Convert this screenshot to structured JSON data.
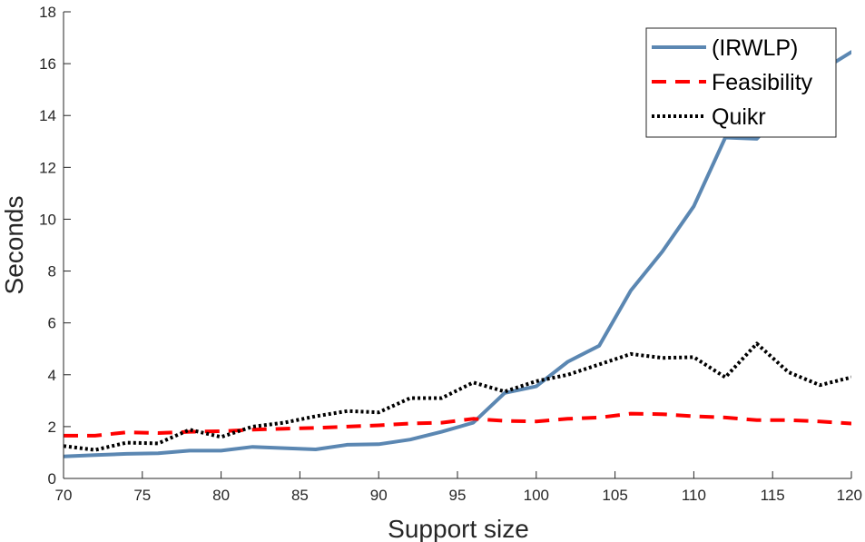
{
  "chart_data": {
    "type": "line",
    "xlabel": "Support size",
    "ylabel": "Seconds",
    "xlim": [
      70,
      120
    ],
    "ylim": [
      0,
      18
    ],
    "xticks": [
      70,
      75,
      80,
      85,
      90,
      95,
      100,
      105,
      110,
      115,
      120
    ],
    "yticks": [
      0,
      2,
      4,
      6,
      8,
      10,
      12,
      14,
      16,
      18
    ],
    "grid": false,
    "legend_position": "top-right",
    "x": [
      70,
      72,
      74,
      76,
      78,
      80,
      82,
      84,
      86,
      88,
      90,
      92,
      94,
      96,
      98,
      100,
      102,
      104,
      106,
      108,
      110,
      112,
      114,
      116,
      118,
      120
    ],
    "series": [
      {
        "name": "(IRWLP)",
        "color": "#5b87b2",
        "style": "solid",
        "values": [
          0.85,
          0.9,
          0.95,
          0.97,
          1.07,
          1.07,
          1.22,
          1.17,
          1.12,
          1.3,
          1.32,
          1.5,
          1.8,
          2.15,
          3.3,
          3.55,
          4.5,
          5.12,
          7.25,
          8.75,
          10.5,
          13.15,
          13.1,
          14.4,
          15.7,
          16.45
        ]
      },
      {
        "name": "Feasibility",
        "color": "#ff0000",
        "style": "dashed",
        "values": [
          1.65,
          1.65,
          1.78,
          1.75,
          1.8,
          1.82,
          1.88,
          1.92,
          1.95,
          2.0,
          2.05,
          2.12,
          2.15,
          2.3,
          2.22,
          2.2,
          2.3,
          2.35,
          2.5,
          2.48,
          2.4,
          2.35,
          2.25,
          2.25,
          2.2,
          2.12
        ]
      },
      {
        "name": "Quikr",
        "color": "#000000",
        "style": "dotted",
        "values": [
          1.25,
          1.1,
          1.38,
          1.35,
          1.88,
          1.6,
          2.0,
          2.15,
          2.4,
          2.6,
          2.55,
          3.1,
          3.1,
          3.7,
          3.35,
          3.75,
          4.0,
          4.4,
          4.8,
          4.65,
          4.68,
          3.9,
          5.2,
          4.1,
          3.6,
          3.9
        ]
      }
    ]
  }
}
